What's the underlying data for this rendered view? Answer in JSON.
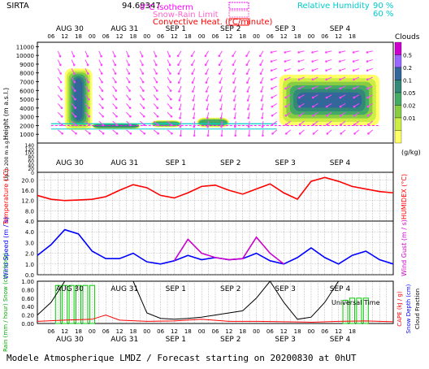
{
  "header": {
    "station": "SIRTA",
    "station_value": "94.69347",
    "legend_isotherm": "0°C isotherm",
    "legend_snowrain": "Snow-Rain Limit",
    "legend_convective": "Convective Heat. (°C/minute)",
    "legend_rh": "Relative Humidity",
    "rh_90": "90 %",
    "rh_60": "60 %"
  },
  "dates": {
    "labels": [
      "AUG 30",
      "AUG 31",
      "SEP  1",
      "SEP  2",
      "SEP  3",
      "SEP  4"
    ],
    "hour_ticks": [
      "06",
      "12",
      "18",
      "00",
      "06",
      "12",
      "18",
      "00",
      "06",
      "12",
      "18",
      "00",
      "06",
      "12",
      "18",
      "00",
      "06",
      "12",
      "18",
      "00",
      "06",
      "12",
      "18"
    ]
  },
  "clouds_scale": {
    "title": "Clouds",
    "unit": "(g/kg)",
    "levels": [
      "0.5",
      "0.2",
      "0.1",
      "0.05",
      "0.02",
      "0.01"
    ],
    "colors": [
      "#cc00cc",
      "#9966ff",
      "#336699",
      "#338877",
      "#44aa66",
      "#88cc44",
      "#ccee44",
      "#ffff66"
    ]
  },
  "axis_labels": {
    "height": "Height  (m a.s.l.)",
    "height_low": "Up to 200 m a.g.l.",
    "temperature": "Temperature (°C)",
    "humidex": "HUMIDEX (°C)",
    "wind_speed": "Wind Speed (m / s)",
    "wind_gust": "Wind Gust (m / s)",
    "rain_snow": "Rain (mm / hour) Snow (cm / hour)",
    "cape": "CAPE (kJ / g)",
    "snow_depth": "Snow Depth (cm)",
    "cloud_fraction": "Cloud Fraction",
    "universal_time": "Universal Time"
  },
  "footer": {
    "caption": "Modele Atmospherique LMDZ / Forecast starting on 20200830 at 0hUT"
  },
  "chart_data": [
    {
      "type": "heatmap",
      "title": "Clouds",
      "ylabel": "Height (m a.s.l.)",
      "yticks_upper": [
        1000,
        2000,
        3000,
        4000,
        5000,
        6000,
        7000,
        8000,
        9000,
        10000,
        11000
      ],
      "yticks_lower": [
        0,
        20,
        40,
        60,
        80,
        100,
        120,
        140
      ],
      "x_time_hours": [
        6,
        150
      ],
      "cloud_blocks": [
        {
          "start_hour": 12,
          "end_hour": 24,
          "base_m": 1500,
          "top_m": 8500,
          "max_gkg": 0.5
        },
        {
          "start_hour": 24,
          "end_hour": 45,
          "base_m": 1600,
          "top_m": 2300,
          "max_gkg": 0.2
        },
        {
          "start_hour": 50,
          "end_hour": 63,
          "base_m": 1800,
          "top_m": 2600,
          "max_gkg": 0.1
        },
        {
          "start_hour": 70,
          "end_hour": 84,
          "base_m": 1800,
          "top_m": 2900,
          "max_gkg": 0.1
        },
        {
          "start_hour": 106,
          "end_hour": 150,
          "base_m": 2000,
          "top_m": 7800,
          "max_gkg": 0.5
        }
      ]
    },
    {
      "type": "line",
      "ylabel": "Temperature (°C)",
      "ylim": [
        4,
        23
      ],
      "yticks": [
        4.0,
        8.0,
        12.0,
        16.0,
        20.0
      ],
      "series": [
        {
          "name": "Temperature",
          "color": "#ff0000",
          "x": [
            0,
            6,
            12,
            18,
            24,
            30,
            36,
            42,
            48,
            54,
            60,
            66,
            72,
            78,
            84,
            90,
            96,
            102,
            108,
            114,
            120,
            126,
            132,
            138,
            144,
            150,
            156
          ],
          "y": [
            14.0,
            12.5,
            12.0,
            12.2,
            12.5,
            13.5,
            16.0,
            18.2,
            17.0,
            14.0,
            13.0,
            15.0,
            17.5,
            18.0,
            16.0,
            14.5,
            16.5,
            18.5,
            15.0,
            12.5,
            19.5,
            21.0,
            19.5,
            17.5,
            16.5,
            15.5,
            15.0
          ]
        }
      ]
    },
    {
      "type": "line",
      "ylabel": "Wind Speed (m / s)",
      "ylim": [
        0,
        5
      ],
      "yticks": [
        0.0,
        1.0,
        2.0,
        3.0,
        4.0
      ],
      "series": [
        {
          "name": "Wind Speed",
          "color": "#0000ff",
          "x": [
            0,
            6,
            12,
            18,
            24,
            30,
            36,
            42,
            48,
            54,
            60,
            66,
            72,
            78,
            84,
            90,
            96,
            102,
            108,
            114,
            120,
            126,
            132,
            138,
            144,
            150,
            156
          ],
          "y": [
            1.8,
            2.8,
            4.2,
            3.8,
            2.2,
            1.5,
            1.5,
            2.0,
            1.2,
            1.0,
            1.3,
            1.8,
            1.4,
            1.6,
            1.4,
            1.5,
            2.0,
            1.3,
            1.0,
            1.6,
            2.5,
            1.6,
            1.0,
            1.8,
            2.2,
            1.4,
            1.0
          ]
        },
        {
          "name": "Wind Gust",
          "color": "#cc00cc",
          "x": [
            60,
            66,
            72,
            78,
            84,
            90,
            96,
            102,
            108
          ],
          "y": [
            1.3,
            3.3,
            2.0,
            1.6,
            1.4,
            1.5,
            3.5,
            2.0,
            1.0
          ]
        }
      ]
    },
    {
      "type": "bar",
      "ylabel": "Rain (mm / hour)",
      "ylim": [
        0,
        1.0
      ],
      "yticks": [
        0.0,
        0.2,
        0.4,
        0.6,
        0.8,
        1.0
      ],
      "rain_bars": [
        {
          "x": 9,
          "value": 0.9
        },
        {
          "x": 12,
          "value": 0.9
        },
        {
          "x": 15,
          "value": 0.9
        },
        {
          "x": 18,
          "value": 0.9
        },
        {
          "x": 21,
          "value": 0.9
        },
        {
          "x": 24,
          "value": 0.9
        },
        {
          "x": 135,
          "value": 0.55
        },
        {
          "x": 138,
          "value": 0.6
        },
        {
          "x": 141,
          "value": 0.6
        },
        {
          "x": 144,
          "value": 0.6
        }
      ],
      "cloud_fraction": {
        "color": "#000000",
        "x": [
          0,
          6,
          12,
          18,
          24,
          30,
          36,
          42,
          48,
          54,
          60,
          66,
          72,
          78,
          84,
          90,
          96,
          102,
          108,
          114,
          120,
          126,
          132,
          138,
          144,
          150,
          156
        ],
        "y": [
          0.2,
          0.5,
          1.0,
          1.0,
          1.0,
          1.0,
          1.0,
          1.0,
          0.25,
          0.12,
          0.1,
          0.12,
          0.15,
          0.2,
          0.25,
          0.3,
          0.6,
          1.0,
          0.5,
          0.1,
          0.15,
          0.5,
          1.0,
          1.0,
          1.0,
          1.0,
          1.0
        ]
      },
      "cape": {
        "color": "#ff0000",
        "x": [
          0,
          12,
          24,
          30,
          36,
          48,
          60,
          72,
          84,
          96,
          108,
          120,
          132,
          144,
          156
        ],
        "y": [
          0.05,
          0.08,
          0.1,
          0.2,
          0.08,
          0.05,
          0.06,
          0.1,
          0.05,
          0.05,
          0.04,
          0.03,
          0.05,
          0.06,
          0.04
        ]
      }
    }
  ]
}
